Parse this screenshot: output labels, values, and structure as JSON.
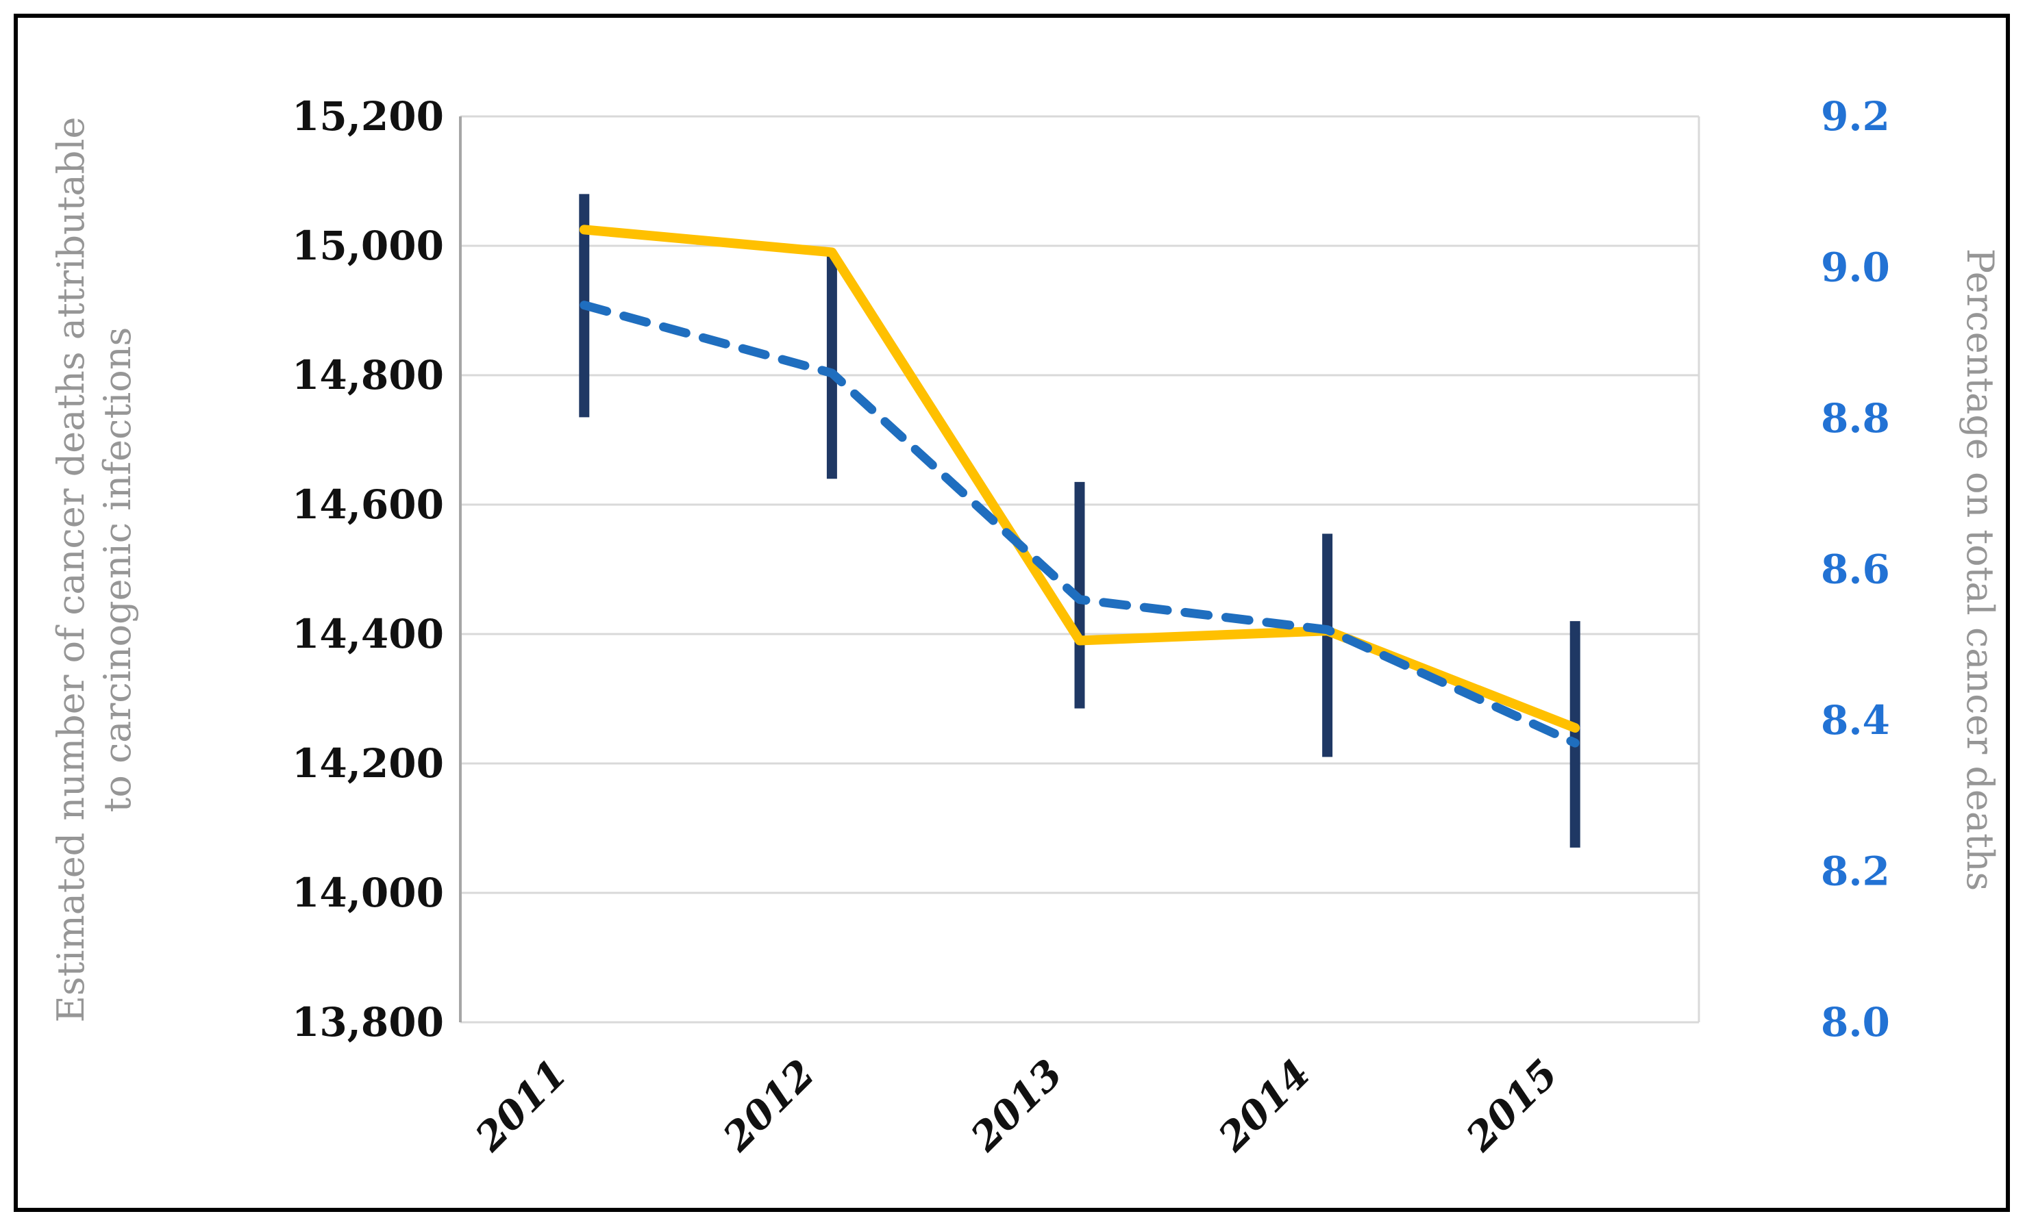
{
  "figure": {
    "border_color": "#000000",
    "background": "#ffffff"
  },
  "chart_data": {
    "type": "line",
    "categories": [
      "2011",
      "2012",
      "2013",
      "2014",
      "2015"
    ],
    "series": [
      {
        "name": "Estimated number of cancer deaths attributable to carcinogenic infections",
        "axis": "left",
        "line_style": "solid",
        "color": "#FFC000",
        "values": [
          15025,
          14990,
          14390,
          14405,
          14255
        ],
        "error_low": [
          14735,
          14640,
          14285,
          14210,
          14070
        ],
        "error_high": [
          15080,
          14990,
          14635,
          14555,
          14420
        ],
        "error_color": "#1F3864"
      },
      {
        "name": "Percentage on total cancer deaths",
        "axis": "right",
        "line_style": "dashed",
        "color": "#1F6EBF",
        "values": [
          8.95,
          8.86,
          8.56,
          8.52,
          8.37
        ]
      }
    ],
    "left_axis": {
      "label_line1": "Estimated number of cancer deaths attributable",
      "label_line2": "to carcinogenic infections",
      "min": 13800,
      "max": 15200,
      "step": 200,
      "tick_labels": [
        "15,200",
        "15,000",
        "14,800",
        "14,600",
        "14,400",
        "14,200",
        "14,000",
        "13,800"
      ]
    },
    "right_axis": {
      "label": "Percentage on total cancer deaths",
      "min": 8.0,
      "max": 9.2,
      "step": 0.2,
      "tick_labels": [
        "9.2",
        "9.0",
        "8.8",
        "8.6",
        "8.4",
        "8.2",
        "8.0"
      ]
    },
    "grid": true,
    "legend": false,
    "colors": {
      "gridline": "#D9D9D9",
      "axis_line": "#A6A6A6",
      "left_tick_text": "#111111",
      "right_tick_text": "#2272D4",
      "axis_title_text": "#969696"
    }
  }
}
